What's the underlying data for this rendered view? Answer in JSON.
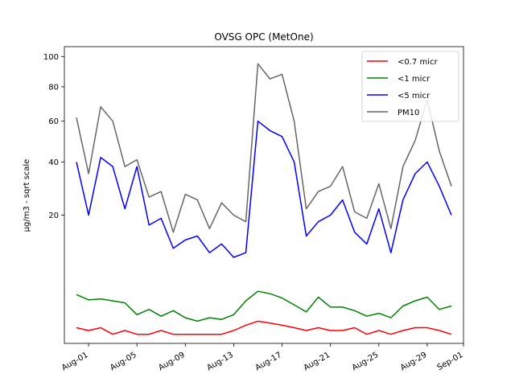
{
  "chart_data": {
    "type": "line",
    "title": "OVSG OPC (MetOne)",
    "ylabel": "µg/m3 - sqrt scale",
    "xlabel": "",
    "y_scale": "sqrt",
    "ylim": [
      0,
      107
    ],
    "y_ticks": [
      20,
      40,
      60,
      80,
      100
    ],
    "y_tick_labels": [
      "20",
      "40",
      "60",
      "80",
      "100"
    ],
    "xlim": [
      "2023-07-30",
      "2023-09-01"
    ],
    "x_ticks": [
      "2023-08-01",
      "2023-08-05",
      "2023-08-09",
      "2023-08-13",
      "2023-08-17",
      "2023-08-21",
      "2023-08-25",
      "2023-08-29",
      "2023-09-01"
    ],
    "x_tick_labels": [
      "Aug-01",
      "Aug-05",
      "Aug-09",
      "Aug-13",
      "Aug-17",
      "Aug-21",
      "Aug-25",
      "Aug-29",
      "Sep-01"
    ],
    "legend_position": "top-right",
    "grid": false,
    "x": [
      "2023-07-31",
      "2023-08-01",
      "2023-08-02",
      "2023-08-03",
      "2023-08-04",
      "2023-08-05",
      "2023-08-06",
      "2023-08-07",
      "2023-08-08",
      "2023-08-09",
      "2023-08-10",
      "2023-08-11",
      "2023-08-12",
      "2023-08-13",
      "2023-08-14",
      "2023-08-15",
      "2023-08-16",
      "2023-08-17",
      "2023-08-18",
      "2023-08-19",
      "2023-08-20",
      "2023-08-21",
      "2023-08-22",
      "2023-08-23",
      "2023-08-24",
      "2023-08-25",
      "2023-08-26",
      "2023-08-27",
      "2023-08-28",
      "2023-08-29",
      "2023-08-30",
      "2023-08-31"
    ],
    "series": [
      {
        "name": "<0.7 micr",
        "color": "#ff0000",
        "values": [
          0.3,
          0.2,
          0.3,
          0.1,
          0.2,
          0.1,
          0.1,
          0.2,
          0.1,
          0.1,
          0.1,
          0.1,
          0.1,
          0.2,
          0.4,
          0.6,
          0.5,
          0.4,
          0.3,
          0.2,
          0.3,
          0.2,
          0.2,
          0.3,
          0.1,
          0.2,
          0.1,
          0.2,
          0.3,
          0.3,
          0.2,
          0.1
        ]
      },
      {
        "name": "<1 micr",
        "color": "#008000",
        "values": [
          2.9,
          2.3,
          2.4,
          2.2,
          2.0,
          1.0,
          1.4,
          0.9,
          1.3,
          0.8,
          0.6,
          0.8,
          0.7,
          1.0,
          2.2,
          3.3,
          3.0,
          2.5,
          1.8,
          1.2,
          2.6,
          1.6,
          1.6,
          1.3,
          0.9,
          1.1,
          0.8,
          1.7,
          2.2,
          2.6,
          1.4,
          1.7
        ]
      },
      {
        "name": "<5 micr",
        "color": "#0000ff",
        "values": [
          40,
          20,
          42,
          38,
          22,
          38,
          17,
          19,
          11,
          13,
          14,
          10,
          12,
          9,
          10,
          60,
          55,
          52,
          40,
          14,
          18,
          20,
          25,
          15,
          12,
          22,
          10,
          25,
          35,
          40,
          30,
          20
        ]
      },
      {
        "name": "PM10",
        "color": "#666666",
        "values": [
          62,
          35,
          68,
          60,
          38,
          41,
          26,
          28,
          15,
          27,
          25,
          16,
          24,
          20,
          18,
          95,
          85,
          88,
          60,
          22,
          28,
          30,
          38,
          21,
          19,
          31,
          16,
          38,
          50,
          72,
          45,
          30
        ]
      }
    ]
  }
}
